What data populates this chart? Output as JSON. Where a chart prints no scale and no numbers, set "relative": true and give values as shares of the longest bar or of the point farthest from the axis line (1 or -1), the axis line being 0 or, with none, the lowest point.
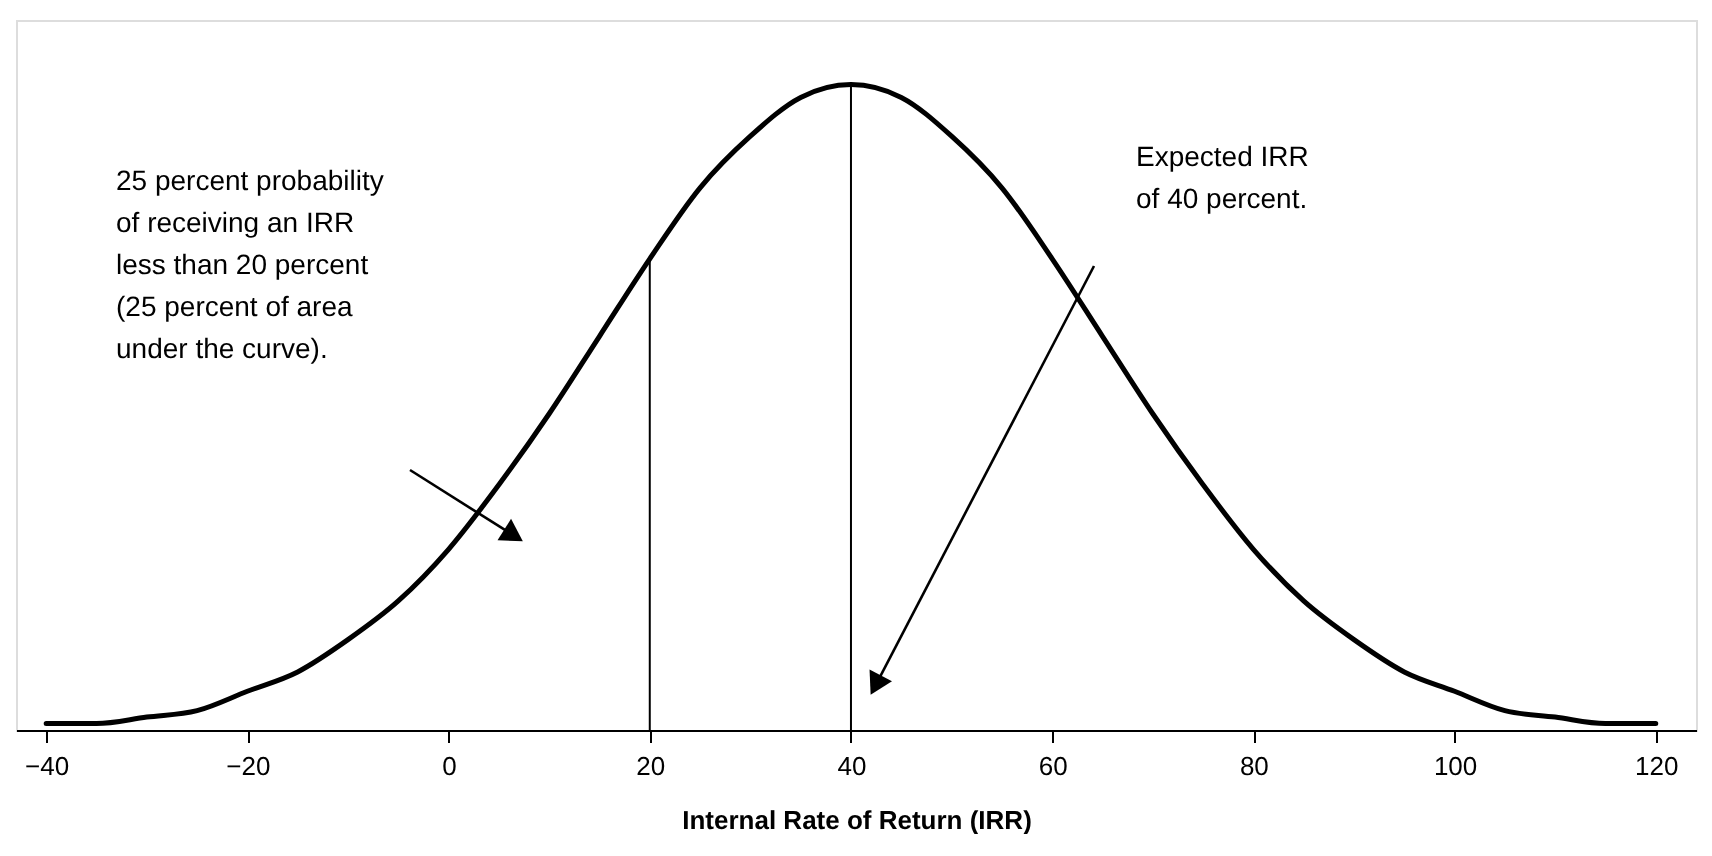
{
  "chart_data": {
    "type": "line",
    "relative": true,
    "xlabel": "Internal Rate of Return (IRR)",
    "xlim": [
      -43,
      124
    ],
    "xticks": [
      -40,
      -20,
      0,
      20,
      40,
      60,
      80,
      100,
      120
    ],
    "grid": false,
    "marker": "none",
    "line_style": "solid",
    "series": [
      {
        "color": "#000000",
        "x": [
          -40,
          -35,
          -30,
          -25,
          -20,
          -15,
          -10,
          -5,
          0,
          5,
          10,
          15,
          20,
          25,
          30,
          35,
          40,
          45,
          50,
          55,
          60,
          65,
          70,
          75,
          80,
          85,
          90,
          95,
          100,
          105,
          110,
          115,
          120
        ],
        "values": [
          0.01,
          0.01,
          0.02,
          0.03,
          0.06,
          0.09,
          0.14,
          0.2,
          0.28,
          0.38,
          0.49,
          0.61,
          0.73,
          0.84,
          0.92,
          0.98,
          1,
          0.98,
          0.92,
          0.84,
          0.73,
          0.61,
          0.49,
          0.38,
          0.28,
          0.2,
          0.14,
          0.09,
          0.06,
          0.03,
          0.02,
          0.01,
          0.01
        ]
      }
    ],
    "ref_lines": [
      {
        "axis": "x",
        "value": 20,
        "color": "#000000"
      },
      {
        "axis": "x",
        "value": 40,
        "color": "#000000"
      }
    ],
    "annotations": [
      "25 percent probability of receiving an IRR less than 20 percent (25 percent of area under the curve).",
      "Expected IRR of 40 percent."
    ]
  }
}
